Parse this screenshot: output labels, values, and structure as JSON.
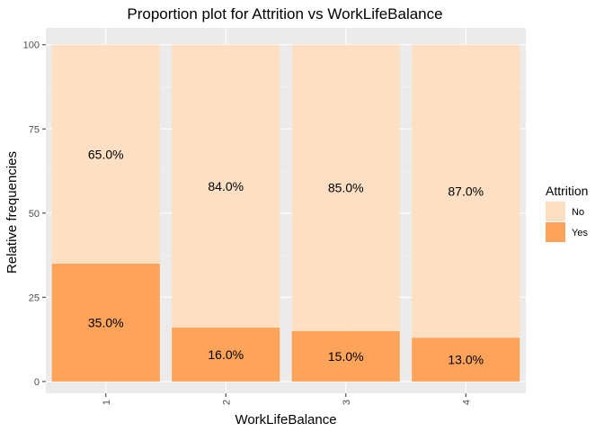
{
  "chart_data": {
    "type": "bar",
    "stacked": true,
    "title": "Proportion plot for Attrition vs WorkLifeBalance",
    "xlabel": "WorkLifeBalance",
    "ylabel": "Relative frequencies",
    "categories": [
      "1",
      "2",
      "3",
      "4"
    ],
    "ylim": [
      0,
      100
    ],
    "yticks": [
      "0",
      "25",
      "50",
      "75",
      "100"
    ],
    "grid": true,
    "legend": {
      "title": "Attrition",
      "position": "right"
    },
    "series": [
      {
        "name": "Yes",
        "color": "#FDA35A",
        "values": [
          35,
          16,
          15,
          13
        ],
        "labels": [
          "35.0%",
          "16.0%",
          "15.0%",
          "13.0%"
        ]
      },
      {
        "name": "No",
        "color": "#FDDFC4",
        "values": [
          65,
          84,
          85,
          87
        ],
        "labels": [
          "65.0%",
          "84.0%",
          "85.0%",
          "87.0%"
        ]
      }
    ]
  }
}
